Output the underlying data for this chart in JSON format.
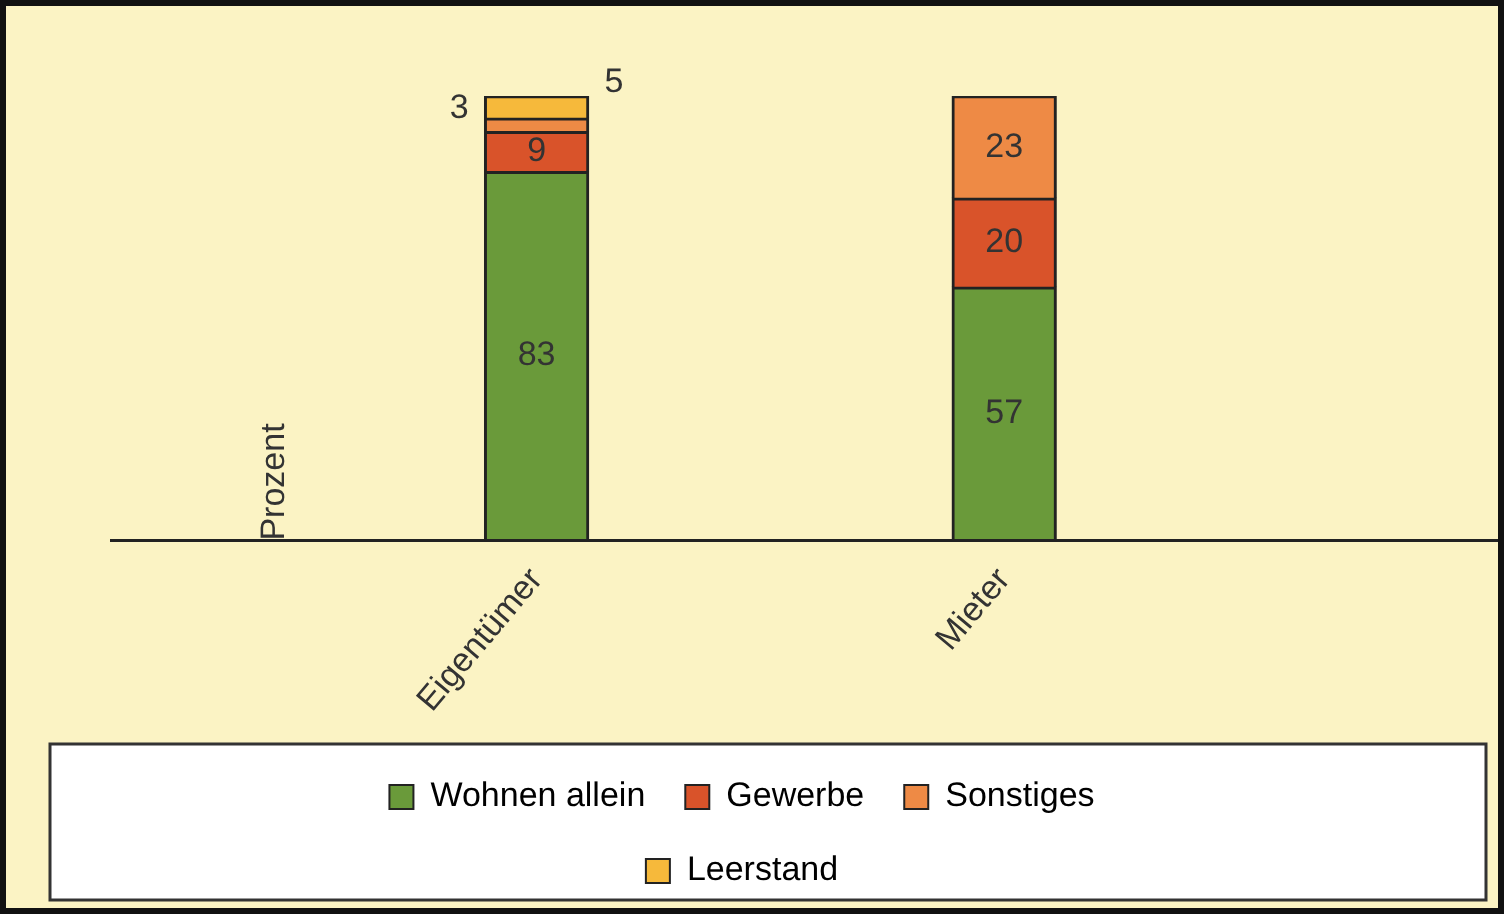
{
  "chart_data": {
    "type": "bar",
    "stacked": true,
    "ylabel": "Prozent",
    "categories": [
      "Eigentümer",
      "Mieter"
    ],
    "series": [
      {
        "name": "Wohnen allein",
        "color": "#6a9a3a",
        "values": [
          83,
          57
        ]
      },
      {
        "name": "Gewerbe",
        "color": "#d9532a",
        "values": [
          9,
          20
        ]
      },
      {
        "name": "Sonstiges",
        "color": "#ee8a45",
        "values": [
          3,
          23
        ]
      },
      {
        "name": "Leerstand",
        "color": "#f6b93b",
        "values": [
          5,
          null
        ]
      }
    ],
    "data_labels": true,
    "grid": false,
    "legend": "bottom",
    "tick_labels": "x"
  }
}
